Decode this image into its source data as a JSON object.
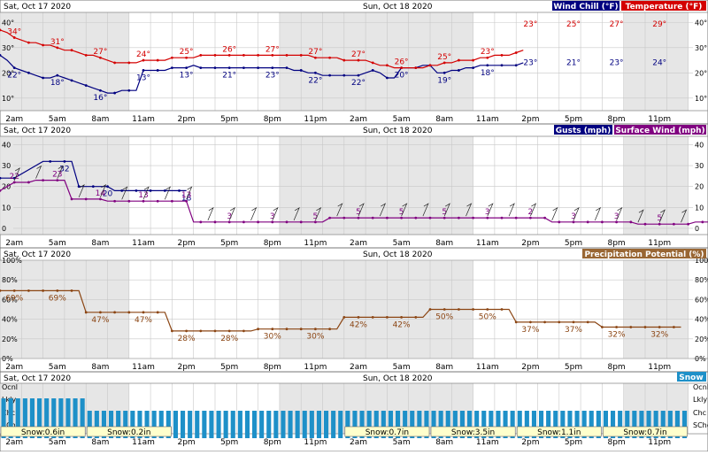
{
  "colors": {
    "wind_chill": "#000080",
    "temperature": "#d40000",
    "gusts": "#000080",
    "surface_wind": "#800080",
    "precip": "#8b4513",
    "snow": "#1e90c8",
    "night_shade": "#e6e6e6",
    "grid": "#c8c8c8",
    "snow_label_bg": "#ffffcc"
  },
  "days": {
    "day1": "Sat, Oct 17 2020",
    "day2": "Sun, Oct 18 2020"
  },
  "x_axis": {
    "tick_labels": [
      "2am",
      "5am",
      "8am",
      "11am",
      "2pm",
      "5pm",
      "8pm",
      "11pm",
      "2am",
      "5am",
      "8am",
      "11am",
      "2pm",
      "5pm",
      "8pm",
      "11pm"
    ]
  },
  "chart_data": [
    {
      "type": "line",
      "panel": "temperature",
      "legend": [
        "Wind Chill (°F)",
        "Temperature (°F)"
      ],
      "y_ticks": [
        "40°",
        "30°",
        "20°",
        "10°"
      ],
      "ylim": [
        5,
        44
      ],
      "x_hours_start": 0,
      "series": [
        {
          "name": "Wind Chill (°F)",
          "values": [
            27,
            25,
            22,
            21,
            20,
            19,
            18,
            18,
            19,
            18,
            17,
            16,
            15,
            14,
            13,
            12,
            12,
            13,
            13,
            13,
            21,
            21,
            21,
            21,
            22,
            22,
            22,
            23,
            22,
            22,
            22,
            22,
            22,
            22,
            22,
            22,
            22,
            22,
            22,
            22,
            22,
            21,
            21,
            20,
            20,
            19,
            19,
            19,
            19,
            19,
            19,
            20,
            21,
            20,
            18,
            18,
            22,
            22,
            22,
            23,
            23,
            20,
            20,
            21,
            21,
            22,
            22,
            23,
            23,
            23,
            23,
            23,
            23,
            24
          ],
          "labels": [
            {
              "h": 2,
              "v": "22°"
            },
            {
              "h": 8,
              "v": "18°"
            },
            {
              "h": 14,
              "v": "16°"
            },
            {
              "h": 20,
              "v": "13°"
            },
            {
              "h": 26,
              "v": "13°"
            },
            {
              "h": 32,
              "v": "21°"
            },
            {
              "h": 38,
              "v": "23°"
            },
            {
              "h": 44,
              "v": "22°"
            },
            {
              "h": 50,
              "v": "22°"
            },
            {
              "h": 56,
              "v": "20°"
            },
            {
              "h": 62,
              "v": "19°"
            },
            {
              "h": 68,
              "v": "18°"
            },
            {
              "h": 74,
              "v": "23°"
            },
            {
              "h": 80,
              "v": "21°"
            },
            {
              "h": 86,
              "v": "23°"
            },
            {
              "h": 92,
              "v": "24°"
            }
          ]
        },
        {
          "name": "Temperature (°F)",
          "values": [
            37,
            36,
            34,
            33,
            32,
            32,
            31,
            31,
            30,
            29,
            29,
            28,
            27,
            27,
            26,
            25,
            24,
            24,
            24,
            24,
            25,
            25,
            25,
            25,
            26,
            26,
            26,
            26,
            27,
            27,
            27,
            27,
            27,
            27,
            27,
            27,
            27,
            27,
            27,
            27,
            27,
            27,
            27,
            27,
            26,
            26,
            26,
            26,
            25,
            25,
            25,
            25,
            24,
            23,
            23,
            22,
            22,
            22,
            22,
            22,
            23,
            23,
            24,
            24,
            25,
            25,
            25,
            26,
            26,
            27,
            27,
            27,
            28,
            29
          ],
          "labels": [
            {
              "h": 2,
              "v": "34°"
            },
            {
              "h": 8,
              "v": "31°"
            },
            {
              "h": 14,
              "v": "27°"
            },
            {
              "h": 20,
              "v": "24°"
            },
            {
              "h": 26,
              "v": "25°"
            },
            {
              "h": 32,
              "v": "26°"
            },
            {
              "h": 38,
              "v": "27°"
            },
            {
              "h": 44,
              "v": "27°"
            },
            {
              "h": 50,
              "v": "27°"
            },
            {
              "h": 56,
              "v": "26°"
            },
            {
              "h": 62,
              "v": "25°"
            },
            {
              "h": 68,
              "v": "23°"
            },
            {
              "h": 74,
              "v": "23°"
            },
            {
              "h": 80,
              "v": "25°"
            },
            {
              "h": 86,
              "v": "27°"
            },
            {
              "h": 92,
              "v": "29°"
            }
          ]
        }
      ]
    },
    {
      "type": "line",
      "panel": "wind",
      "legend": [
        "Gusts (mph)",
        "Surface Wind (mph)"
      ],
      "y_ticks": [
        "40",
        "30",
        "20",
        "10",
        "0"
      ],
      "ylim": [
        -3,
        44
      ],
      "x_hours_start": 0,
      "series": [
        {
          "name": "Gusts (mph)",
          "x_hours": [
            0,
            1,
            2,
            6,
            7,
            8,
            9,
            10,
            11,
            12,
            13,
            14,
            15,
            16,
            17,
            18,
            19,
            20,
            21,
            22,
            23,
            24,
            25,
            26
          ],
          "values": [
            24,
            24,
            24,
            32,
            32,
            32,
            32,
            32,
            20,
            20,
            20,
            20,
            20,
            18,
            18,
            18,
            18,
            18,
            18,
            18,
            18,
            18,
            18,
            18
          ],
          "labels": [
            {
              "h": 9,
              "v": "32"
            },
            {
              "h": 15,
              "v": "20"
            },
            {
              "h": 26,
              "v": "18"
            }
          ]
        },
        {
          "name": "Surface Wind (mph)",
          "values": [
            18,
            20,
            22,
            22,
            22,
            23,
            23,
            23,
            23,
            23,
            14,
            14,
            14,
            14,
            14,
            13,
            13,
            13,
            13,
            13,
            13,
            13,
            13,
            13,
            13,
            13,
            13,
            3,
            3,
            3,
            3,
            3,
            3,
            3,
            3,
            3,
            3,
            3,
            3,
            3,
            3,
            3,
            3,
            3,
            3,
            3,
            5,
            5,
            5,
            5,
            5,
            5,
            5,
            5,
            5,
            5,
            5,
            5,
            5,
            5,
            5,
            5,
            5,
            5,
            5,
            5,
            5,
            5,
            5,
            5,
            5,
            5,
            5,
            5,
            5,
            5,
            5,
            3,
            3,
            3,
            3,
            3,
            3,
            3,
            3,
            3,
            3,
            3,
            3,
            2,
            2,
            2,
            2,
            2,
            2,
            2,
            2,
            3,
            3,
            3,
            3,
            3,
            3,
            3,
            3,
            3,
            3,
            3,
            3,
            3,
            3,
            3,
            3,
            3,
            3,
            3,
            3,
            5,
            5,
            5,
            5,
            5
          ],
          "labels": [
            {
              "h": 2,
              "v": "22"
            },
            {
              "h": 8,
              "v": "23"
            },
            {
              "h": 14,
              "v": "14"
            },
            {
              "h": 20,
              "v": "13"
            },
            {
              "h": 26,
              "v": "13"
            },
            {
              "h": 32,
              "v": "3"
            },
            {
              "h": 38,
              "v": "3"
            },
            {
              "h": 44,
              "v": "5"
            },
            {
              "h": 50,
              "v": "5"
            },
            {
              "h": 56,
              "v": "5"
            },
            {
              "h": 62,
              "v": "5"
            },
            {
              "h": 68,
              "v": "3"
            },
            {
              "h": 74,
              "v": "2"
            },
            {
              "h": 80,
              "v": "3"
            },
            {
              "h": 86,
              "v": "3"
            },
            {
              "h": 92,
              "v": "5"
            }
          ]
        }
      ]
    },
    {
      "type": "line",
      "panel": "precip",
      "legend": [
        "Precipitation Potential (%)"
      ],
      "y_ticks": [
        "100%",
        "80%",
        "60%",
        "40%",
        "20%",
        "0%"
      ],
      "ylim": [
        0,
        100
      ],
      "x_hours_start": 0,
      "series": [
        {
          "name": "Precipitation Potential (%)",
          "values": [
            69,
            69,
            69,
            69,
            69,
            69,
            69,
            69,
            69,
            69,
            69,
            69,
            47,
            47,
            47,
            47,
            47,
            47,
            47,
            47,
            47,
            47,
            47,
            47,
            28,
            28,
            28,
            28,
            28,
            28,
            28,
            28,
            28,
            28,
            28,
            28,
            30,
            30,
            30,
            30,
            30,
            30,
            30,
            30,
            30,
            30,
            30,
            30,
            42,
            42,
            42,
            42,
            42,
            42,
            42,
            42,
            42,
            42,
            42,
            42,
            50,
            50,
            50,
            50,
            50,
            50,
            50,
            50,
            50,
            50,
            50,
            50,
            37,
            37,
            37,
            37,
            37,
            37,
            37,
            37,
            37,
            37,
            37,
            37,
            32,
            32,
            32,
            32,
            32,
            32,
            32,
            32,
            32,
            32,
            32,
            32
          ],
          "labels": [
            {
              "h": 2,
              "v": "69%"
            },
            {
              "h": 8,
              "v": "69%"
            },
            {
              "h": 14,
              "v": "47%"
            },
            {
              "h": 20,
              "v": "47%"
            },
            {
              "h": 26,
              "v": "28%"
            },
            {
              "h": 32,
              "v": "28%"
            },
            {
              "h": 38,
              "v": "30%"
            },
            {
              "h": 44,
              "v": "30%"
            },
            {
              "h": 50,
              "v": "42%"
            },
            {
              "h": 56,
              "v": "42%"
            },
            {
              "h": 62,
              "v": "50%"
            },
            {
              "h": 68,
              "v": "50%"
            },
            {
              "h": 74,
              "v": "37%"
            },
            {
              "h": 80,
              "v": "37%"
            },
            {
              "h": 86,
              "v": "32%"
            },
            {
              "h": 92,
              "v": "32%"
            }
          ]
        }
      ]
    },
    {
      "type": "bar",
      "panel": "snow",
      "legend": [
        "Snow"
      ],
      "y_ticks": [
        "Ocnl",
        "Lkly",
        "Chc",
        "SChc"
      ],
      "levels_per_hour": [
        3,
        3,
        3,
        3,
        3,
        3,
        3,
        3,
        3,
        3,
        3,
        3,
        2,
        2,
        2,
        2,
        2,
        2,
        2,
        2,
        2,
        2,
        2,
        2,
        2,
        2,
        2,
        2,
        2,
        2,
        2,
        2,
        2,
        2,
        2,
        2,
        2,
        2,
        2,
        2,
        2,
        2,
        2,
        2,
        2,
        2,
        2,
        2,
        2,
        2,
        2,
        2,
        2,
        2,
        2,
        2,
        2,
        2,
        2,
        2,
        2,
        2,
        2,
        2,
        2,
        2,
        2,
        2,
        2,
        2,
        2,
        2,
        2,
        2,
        2,
        2,
        2,
        2,
        2,
        2,
        2,
        2,
        2,
        2,
        2,
        2,
        2,
        2,
        2,
        2,
        2,
        2,
        2,
        2,
        2,
        2
      ],
      "amounts": [
        {
          "start_h": 0,
          "end_h": 12,
          "label": "Snow:0.6in"
        },
        {
          "start_h": 12,
          "end_h": 24,
          "label": "Snow:0.2in"
        },
        {
          "start_h": 48,
          "end_h": 60,
          "label": "Snow:0.7in"
        },
        {
          "start_h": 60,
          "end_h": 72,
          "label": "Snow:3.5in"
        },
        {
          "start_h": 72,
          "end_h": 84,
          "label": "Snow:1.1in"
        },
        {
          "start_h": 84,
          "end_h": 96,
          "label": "Snow:0.7in"
        }
      ]
    }
  ]
}
